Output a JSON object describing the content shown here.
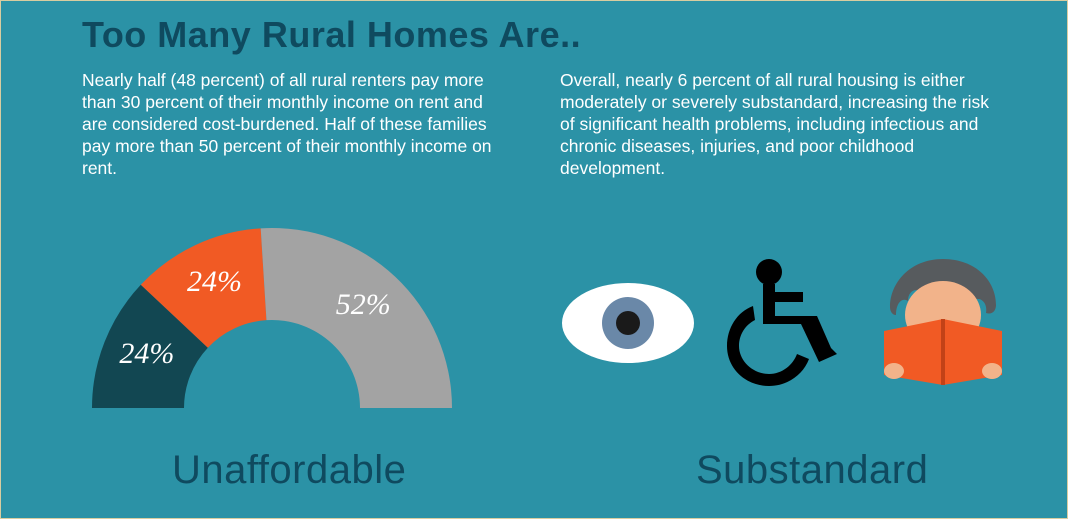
{
  "title": "Too Many Rural Homes Are..",
  "background_color": "#2b92a6",
  "title_color": "#0f4a5f",
  "text_color": "#ffffff",
  "section_label_color": "#0f4a5f",
  "left": {
    "description": "Nearly half (48 percent) of all rural renters pay more than 30 percent of their monthly income on rent and are considered cost-burdened. Half of these families pay more than 50 percent of their monthly income on rent.",
    "label": "Unaffordable",
    "gauge": {
      "type": "semi-donut",
      "total_degrees": 180,
      "segments": [
        {
          "value": 24,
          "label": "24%",
          "color": "#124752"
        },
        {
          "value": 24,
          "label": "24%",
          "color": "#f15a24"
        },
        {
          "value": 52,
          "label": "52%",
          "color": "#a3a3a3"
        }
      ],
      "outer_radius": 180,
      "inner_radius": 88,
      "label_fontsize": 30,
      "label_font": "Georgia italic",
      "label_color": "#ffffff"
    }
  },
  "right": {
    "description": "Overall, nearly 6 percent of all rural housing is either moderately or severely substandard, increasing the risk of significant health problems, including infectious and chronic diseases, injuries, and poor childhood development.",
    "label": "Substandard",
    "icons": [
      {
        "name": "eye-icon",
        "outer_color": "#ffffff",
        "iris_color": "#6a88a8",
        "pupil_color": "#1a1a1a"
      },
      {
        "name": "wheelchair-icon",
        "color": "#000000"
      },
      {
        "name": "child-reading-icon",
        "hair_color": "#575b5e",
        "face_color": "#f2b38a",
        "book_color": "#f15a24"
      }
    ]
  }
}
